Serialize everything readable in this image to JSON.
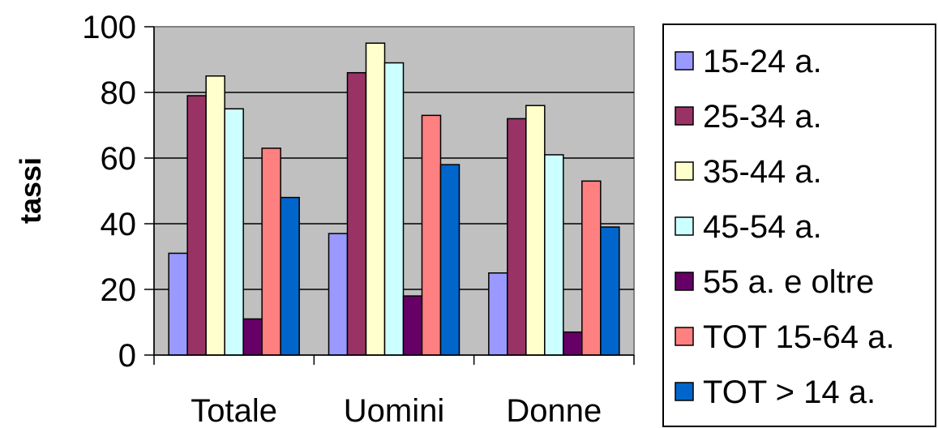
{
  "chart_data": {
    "type": "bar",
    "title": "",
    "xlabel": "",
    "ylabel": "tassi",
    "ylim": [
      0,
      100
    ],
    "yticks": [
      0,
      20,
      40,
      60,
      80,
      100
    ],
    "grid": true,
    "legend_position": "right",
    "categories": [
      "Totale",
      "Uomini",
      "Donne"
    ],
    "series": [
      {
        "name": "15-24 a.",
        "color": "#9999ff",
        "values": [
          31,
          37,
          25
        ]
      },
      {
        "name": "25-34 a.",
        "color": "#993366",
        "values": [
          79,
          86,
          72
        ]
      },
      {
        "name": "35-44 a.",
        "color": "#ffffcc",
        "values": [
          85,
          95,
          76
        ]
      },
      {
        "name": "45-54 a.",
        "color": "#ccffff",
        "values": [
          75,
          89,
          61
        ]
      },
      {
        "name": "55 a. e oltre",
        "color": "#660066",
        "values": [
          11,
          18,
          7
        ]
      },
      {
        "name": "TOT 15-64 a.",
        "color": "#ff8080",
        "values": [
          63,
          73,
          53
        ]
      },
      {
        "name": "TOT > 14 a.",
        "color": "#0066cc",
        "values": [
          48,
          58,
          39
        ]
      }
    ],
    "plot_background": "#c0c0c0"
  }
}
